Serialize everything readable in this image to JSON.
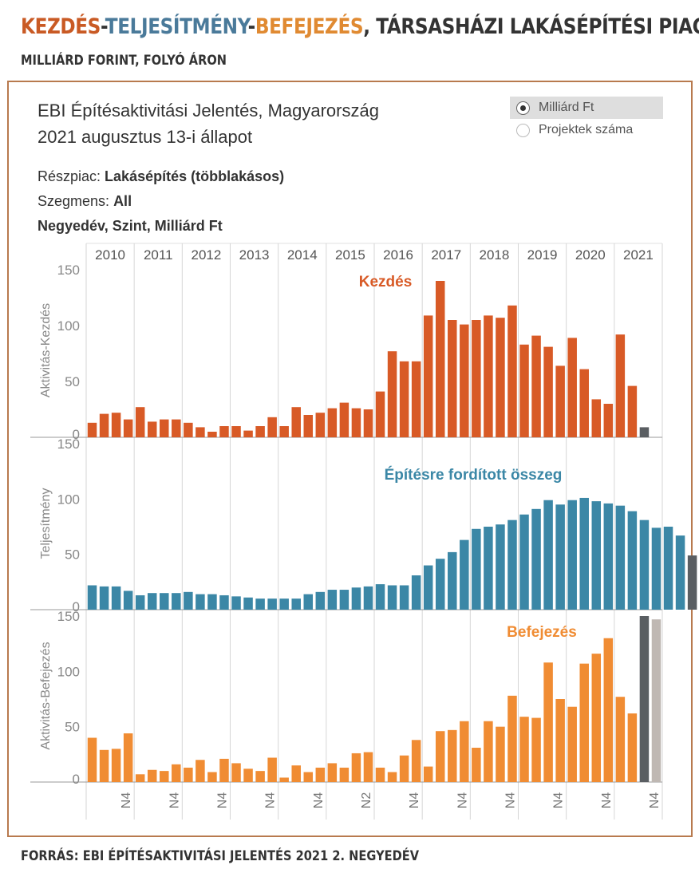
{
  "header": {
    "title_kezdes": "KEZDÉS",
    "dash1": "-",
    "title_teljesitmeny": "TELJESÍTMÉNY",
    "dash2": "-",
    "title_befejezes": "BEFEJEZÉS",
    "title_rest": ", TÁRSASHÁZI LAKÁSÉPÍTÉSI PIAC",
    "subtitle": "MILLIÁRD FORINT, FOLYÓ ÁRON"
  },
  "report": {
    "title_line1": "EBI Építésaktivitási Jelentés, Magyarország",
    "title_line2": "2021 augusztus 13-i állapot",
    "reszpiac_label": "Részpiac:",
    "reszpiac_value": "Lakásépítés (többlakásos)",
    "szegmens_label": "Szegmens:",
    "szegmens_value": "All",
    "measure_line": "Negyedév, Szint, Milliárd Ft"
  },
  "toggle": {
    "options": [
      "Milliárd Ft",
      "Projektek száma"
    ],
    "selected": "Milliárd Ft"
  },
  "footer": {
    "source": "FORRÁS: EBI ÉPÍTÉSAKTIVITÁSI JELENTÉS 2021 2. NEGYEDÉV"
  },
  "chart_data": {
    "type": "bar",
    "years": [
      "2010",
      "2011",
      "2012",
      "2013",
      "2014",
      "2015",
      "2016",
      "2017",
      "2018",
      "2019",
      "2020",
      "2021"
    ],
    "x_tick_labels": [
      "N4",
      "N4",
      "N4",
      "N4",
      "N4",
      "N2",
      "N4",
      "N4",
      "N4",
      "N4",
      "N4",
      "N4"
    ],
    "colors": {
      "kezdes": "#d85a26",
      "teljesitmeny": "#3b87a6",
      "befejezes": "#f08c33",
      "actual_dark": "#5a5e62",
      "forecast_light": "#bfb8b3"
    },
    "panels": [
      {
        "name": "Kezdés",
        "ylabel": "Aktivitás-Kezdés",
        "ylim": [
          0,
          150
        ],
        "yticks": [
          0,
          50,
          100,
          150
        ],
        "values": [
          13,
          21,
          22,
          16,
          27,
          14,
          16,
          16,
          13,
          9,
          5,
          10,
          10,
          6,
          10,
          18,
          10,
          27,
          20,
          22,
          26,
          31,
          26,
          25,
          41,
          77,
          68,
          68,
          109,
          140,
          105,
          101,
          105,
          109,
          107,
          118,
          83,
          91,
          81,
          64,
          89,
          61,
          34,
          30,
          92,
          46,
          9
        ],
        "final_color": "actual_dark"
      },
      {
        "name": "Építésre fordított összeg",
        "ylabel": "Teljesítmény",
        "ylim": [
          0,
          150
        ],
        "yticks": [
          0,
          50,
          100,
          150
        ],
        "values": [
          22,
          21,
          21,
          17,
          13,
          15,
          15,
          15,
          16,
          14,
          14,
          13,
          12,
          11,
          10,
          10,
          10,
          10,
          14,
          16,
          18,
          18,
          20,
          21,
          23,
          22,
          22,
          31,
          40,
          46,
          52,
          63,
          73,
          75,
          77,
          81,
          86,
          91,
          99,
          95,
          99,
          101,
          98,
          96,
          94,
          89,
          81,
          74,
          75,
          67,
          49
        ],
        "final_color": "actual_dark",
        "forecast_values": [
          49
        ]
      },
      {
        "name": "Befejezés",
        "ylabel": "Aktivitás-Befejezés",
        "ylim": [
          0,
          150
        ],
        "yticks": [
          0,
          50,
          100,
          150
        ],
        "values": [
          40,
          29,
          30,
          44,
          7,
          11,
          10,
          16,
          13,
          20,
          9,
          21,
          17,
          12,
          10,
          22,
          4,
          15,
          9,
          13,
          17,
          13,
          26,
          27,
          13,
          9,
          24,
          38,
          14,
          46,
          47,
          55,
          31,
          55,
          50,
          78,
          59,
          58,
          108,
          75,
          68,
          107,
          116,
          130,
          77,
          62,
          150
        ],
        "final_color": "actual_dark",
        "forecast_values": [
          147
        ]
      }
    ]
  }
}
